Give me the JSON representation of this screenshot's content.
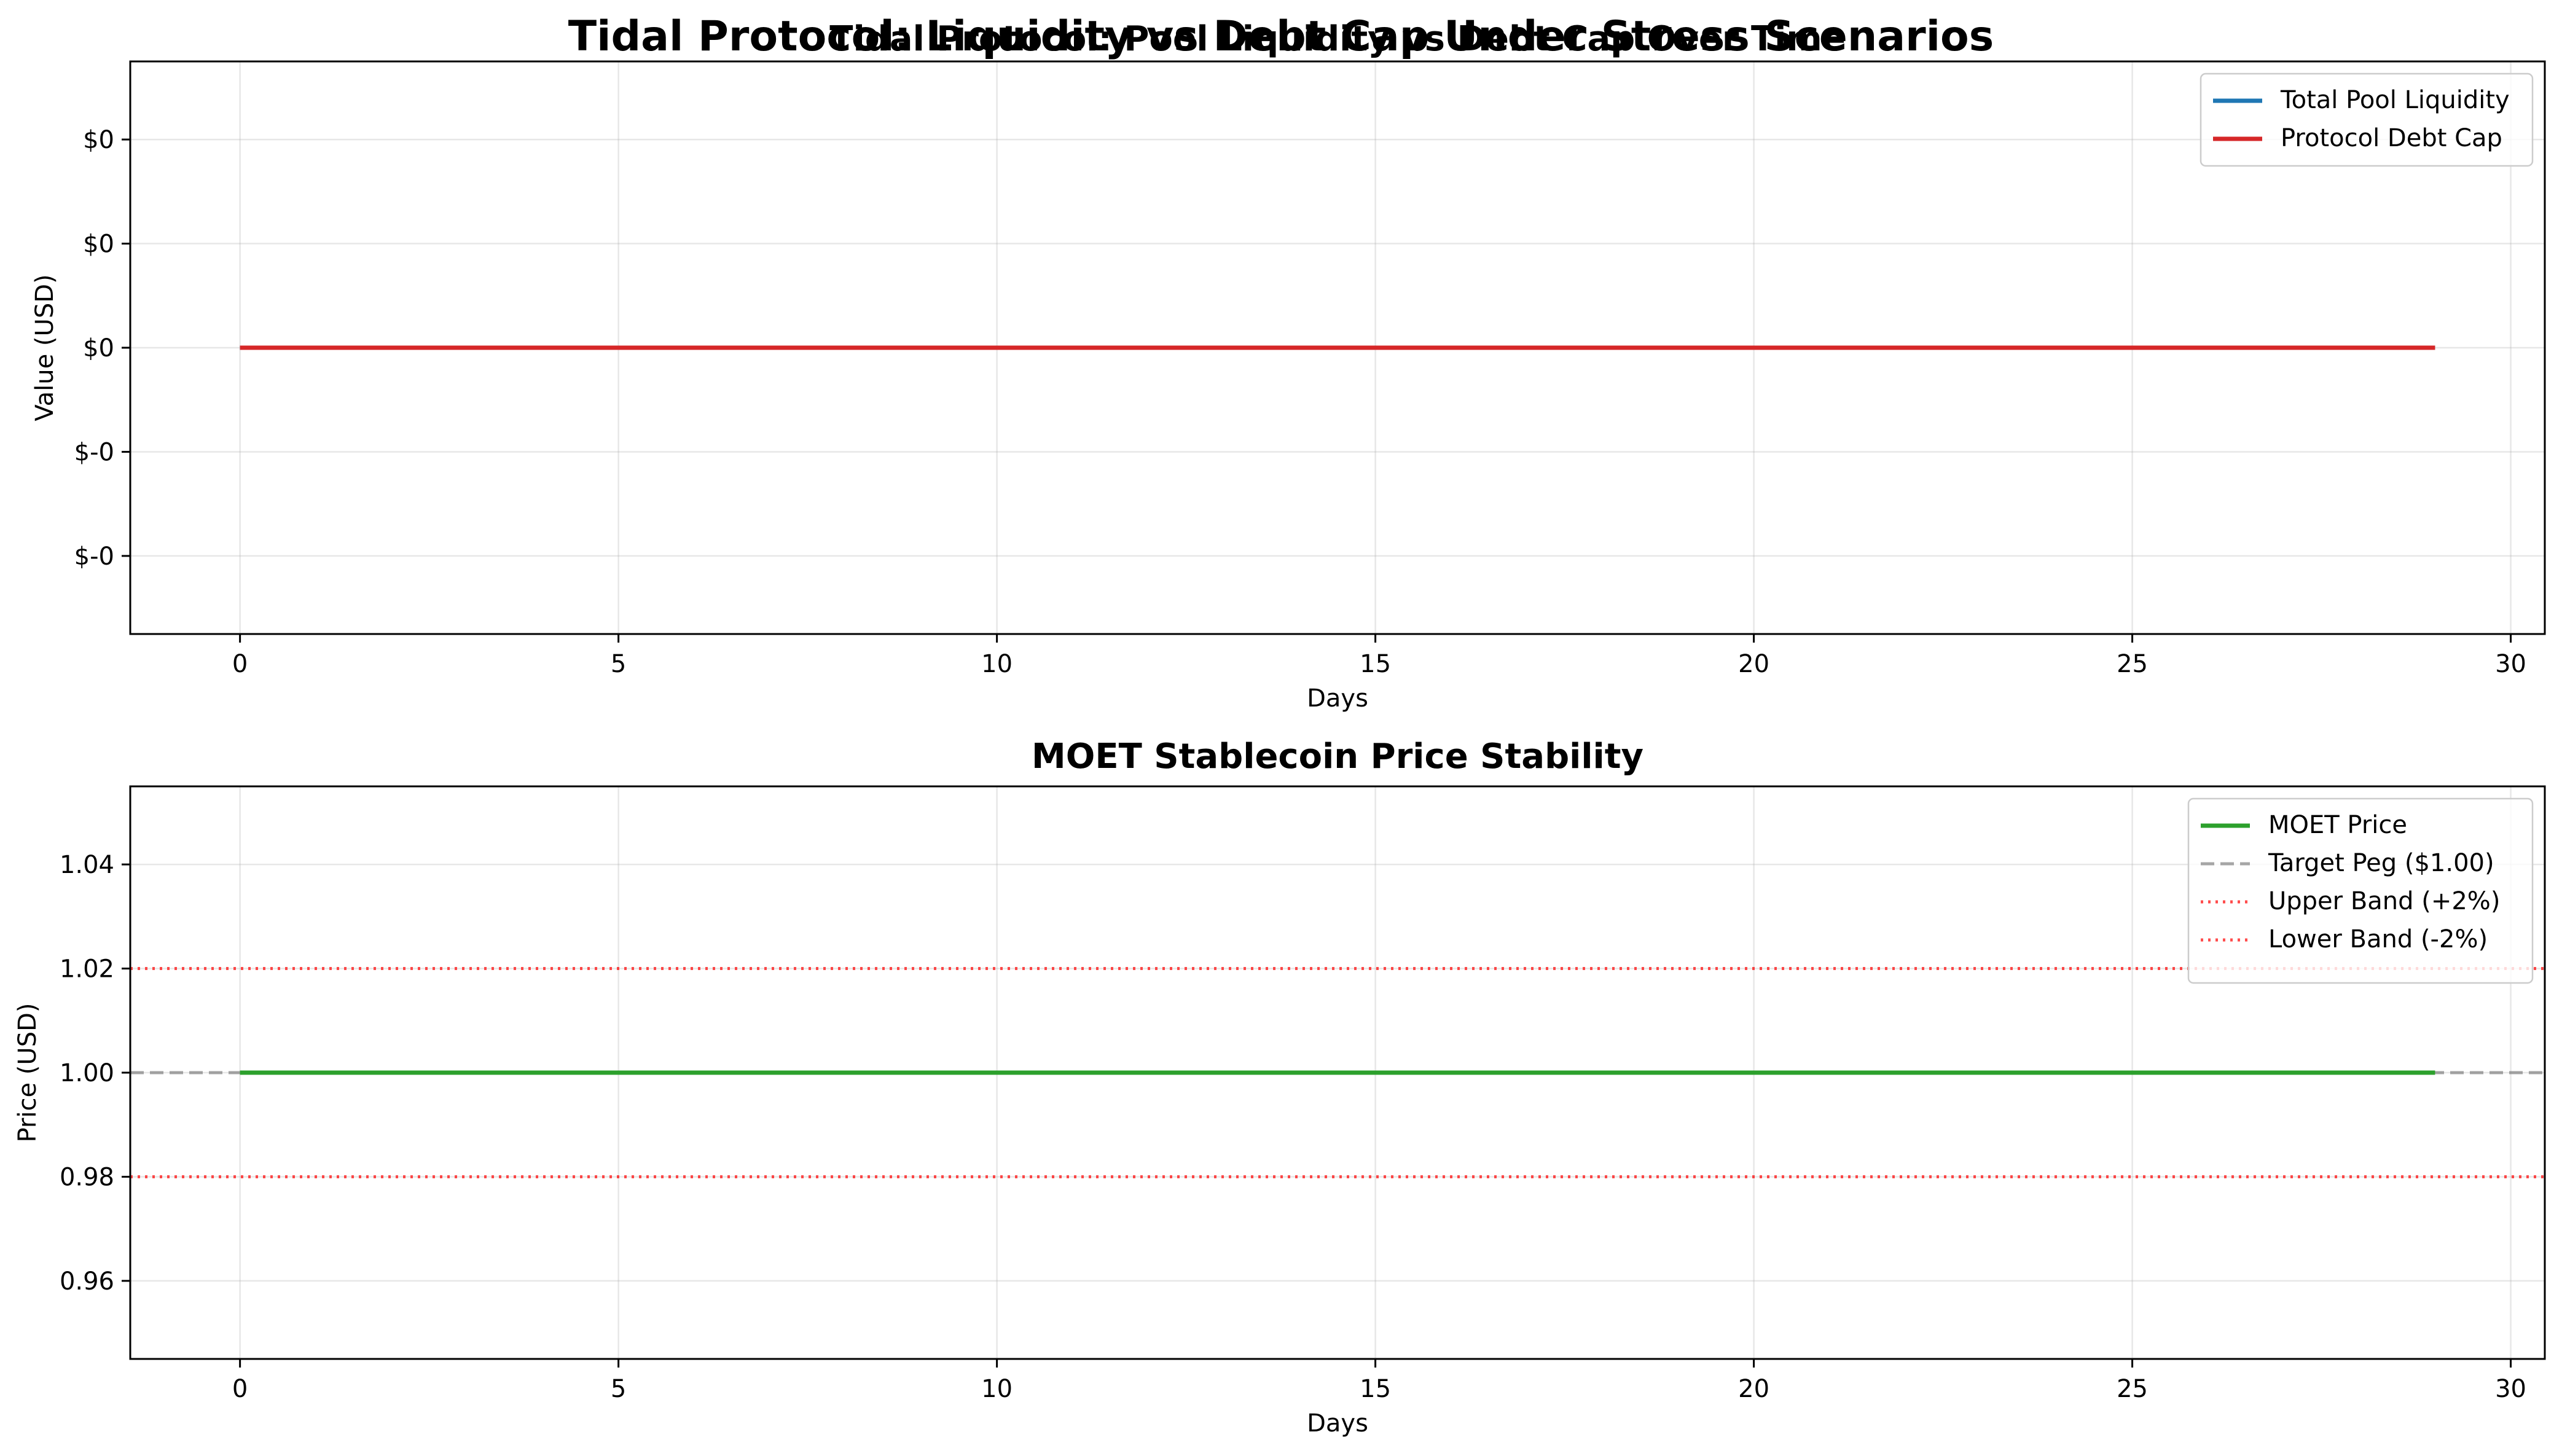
{
  "suptitle": "Tidal Protocol: Liquidity vs Debt Cap Under Stress Scenarios",
  "chart_data": [
    {
      "type": "line",
      "title": "Tidal Protocol: Pool Liquidity vs Debt Cap Over Time",
      "xlabel": "Days",
      "ylabel": "Value (USD)",
      "xlim": [
        -1.45,
        30.45
      ],
      "ylim": [
        -0.055,
        0.055
      ],
      "xticks": [
        0,
        5,
        10,
        15,
        20,
        25,
        30
      ],
      "yticks": [
        -0.04,
        -0.02,
        0,
        0.02,
        0.04
      ],
      "ytick_labels": [
        "$-0",
        "$-0",
        "$0",
        "$0",
        "$0"
      ],
      "grid": true,
      "legend_placement": "upper right",
      "series": [
        {
          "name": "Total Pool Liquidity",
          "color": "#1f77b4",
          "style": "solid",
          "x": [
            0,
            1,
            2,
            3,
            4,
            5,
            6,
            7,
            8,
            9,
            10,
            11,
            12,
            13,
            14,
            15,
            16,
            17,
            18,
            19,
            20,
            21,
            22,
            23,
            24,
            25,
            26,
            27,
            28,
            29
          ],
          "y": [
            0,
            0,
            0,
            0,
            0,
            0,
            0,
            0,
            0,
            0,
            0,
            0,
            0,
            0,
            0,
            0,
            0,
            0,
            0,
            0,
            0,
            0,
            0,
            0,
            0,
            0,
            0,
            0,
            0,
            0
          ]
        },
        {
          "name": "Protocol Debt Cap",
          "color": "#d62728",
          "style": "solid",
          "x": [
            0,
            1,
            2,
            3,
            4,
            5,
            6,
            7,
            8,
            9,
            10,
            11,
            12,
            13,
            14,
            15,
            16,
            17,
            18,
            19,
            20,
            21,
            22,
            23,
            24,
            25,
            26,
            27,
            28,
            29
          ],
          "y": [
            0,
            0,
            0,
            0,
            0,
            0,
            0,
            0,
            0,
            0,
            0,
            0,
            0,
            0,
            0,
            0,
            0,
            0,
            0,
            0,
            0,
            0,
            0,
            0,
            0,
            0,
            0,
            0,
            0,
            0
          ]
        }
      ]
    },
    {
      "type": "line",
      "title": "MOET Stablecoin Price Stability",
      "xlabel": "Days",
      "ylabel": "Price (USD)",
      "xlim": [
        -1.45,
        30.45
      ],
      "ylim": [
        0.945,
        1.055
      ],
      "xticks": [
        0,
        5,
        10,
        15,
        20,
        25,
        30
      ],
      "yticks": [
        0.96,
        0.98,
        1.0,
        1.02,
        1.04
      ],
      "ytick_labels": [
        "0.96",
        "0.98",
        "1.00",
        "1.02",
        "1.04"
      ],
      "grid": true,
      "legend_placement": "upper right",
      "series": [
        {
          "name": "MOET Price",
          "color": "#2ca02c",
          "style": "solid",
          "x": [
            0,
            1,
            2,
            3,
            4,
            5,
            6,
            7,
            8,
            9,
            10,
            11,
            12,
            13,
            14,
            15,
            16,
            17,
            18,
            19,
            20,
            21,
            22,
            23,
            24,
            25,
            26,
            27,
            28,
            29
          ],
          "y": [
            1,
            1,
            1,
            1,
            1,
            1,
            1,
            1,
            1,
            1,
            1,
            1,
            1,
            1,
            1,
            1,
            1,
            1,
            1,
            1,
            1,
            1,
            1,
            1,
            1,
            1,
            1,
            1,
            1,
            1
          ]
        }
      ],
      "hlines": [
        {
          "name": "Target Peg ($1.00)",
          "y": 1.0,
          "color": "#808080",
          "style": "dashed"
        },
        {
          "name": "Upper Band (+2%)",
          "y": 1.02,
          "color": "#ff0000",
          "style": "dotted"
        },
        {
          "name": "Lower Band (-2%)",
          "y": 0.98,
          "color": "#ff0000",
          "style": "dotted"
        }
      ]
    }
  ]
}
